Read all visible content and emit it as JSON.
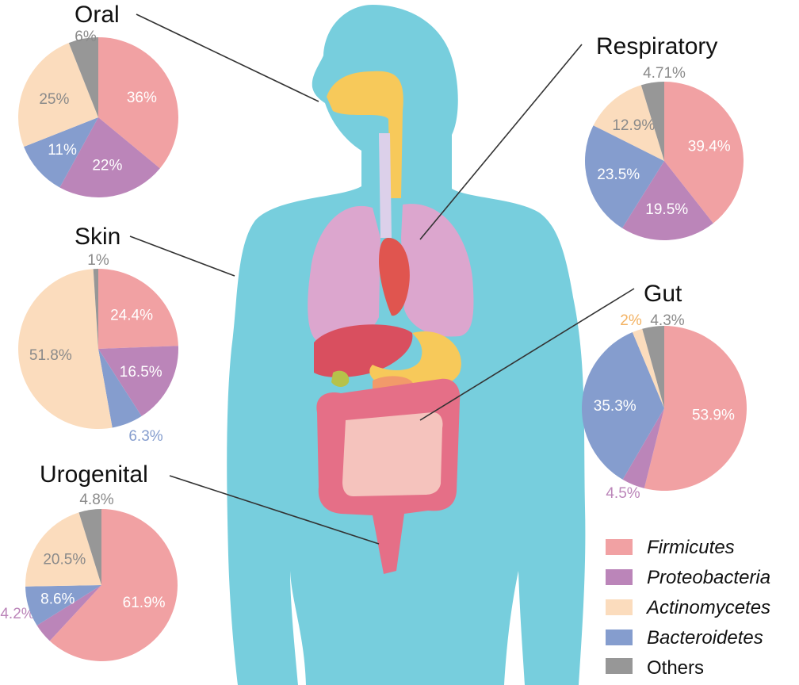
{
  "colors": {
    "Firmicutes": "#f1a1a3",
    "Proteobacteria": "#bb85b9",
    "Actinomycetes": "#fbdcbd",
    "Bacteroidetes": "#859dce",
    "Others": "#979797",
    "body": "#77cedd"
  },
  "legend": [
    {
      "name": "Firmicutes",
      "italic": true
    },
    {
      "name": "Proteobacteria",
      "italic": true
    },
    {
      "name": "Actinomycetes",
      "italic": true
    },
    {
      "name": "Bacteroidetes",
      "italic": true
    },
    {
      "name": "Others",
      "italic": false
    }
  ],
  "chart_data": [
    {
      "type": "pie",
      "title": "Oral",
      "slices": [
        {
          "name": "Firmicutes",
          "value": 36,
          "label": "36%"
        },
        {
          "name": "Proteobacteria",
          "value": 22,
          "label": "22%"
        },
        {
          "name": "Bacteroidetes",
          "value": 11,
          "label": "11%"
        },
        {
          "name": "Actinomycetes",
          "value": 25,
          "label": "25%"
        },
        {
          "name": "Others",
          "value": 6,
          "label": "6%"
        }
      ]
    },
    {
      "type": "pie",
      "title": "Skin",
      "slices": [
        {
          "name": "Firmicutes",
          "value": 24.4,
          "label": "24.4%"
        },
        {
          "name": "Proteobacteria",
          "value": 16.5,
          "label": "16.5%"
        },
        {
          "name": "Bacteroidetes",
          "value": 6.3,
          "label": "6.3%"
        },
        {
          "name": "Actinomycetes",
          "value": 51.8,
          "label": "51.8%"
        },
        {
          "name": "Others",
          "value": 1,
          "label": "1%"
        }
      ]
    },
    {
      "type": "pie",
      "title": "Urogenital",
      "slices": [
        {
          "name": "Firmicutes",
          "value": 61.9,
          "label": "61.9%"
        },
        {
          "name": "Proteobacteria",
          "value": 4.2,
          "label": "4.2%"
        },
        {
          "name": "Bacteroidetes",
          "value": 8.6,
          "label": "8.6%"
        },
        {
          "name": "Actinomycetes",
          "value": 20.5,
          "label": "20.5%"
        },
        {
          "name": "Others",
          "value": 4.8,
          "label": "4.8%"
        }
      ]
    },
    {
      "type": "pie",
      "title": "Respiratory",
      "slices": [
        {
          "name": "Firmicutes",
          "value": 39.4,
          "label": "39.4%"
        },
        {
          "name": "Proteobacteria",
          "value": 19.5,
          "label": "19.5%"
        },
        {
          "name": "Bacteroidetes",
          "value": 23.5,
          "label": "23.5%"
        },
        {
          "name": "Actinomycetes",
          "value": 12.9,
          "label": "12.9%"
        },
        {
          "name": "Others",
          "value": 4.71,
          "label": "4.71%"
        }
      ]
    },
    {
      "type": "pie",
      "title": "Gut",
      "slices": [
        {
          "name": "Firmicutes",
          "value": 53.9,
          "label": "53.9%"
        },
        {
          "name": "Proteobacteria",
          "value": 4.5,
          "label": "4.5%"
        },
        {
          "name": "Bacteroidetes",
          "value": 35.3,
          "label": "35.3%"
        },
        {
          "name": "Actinomycetes",
          "value": 2,
          "label": "2%"
        },
        {
          "name": "Others",
          "value": 4.3,
          "label": "4.3%"
        }
      ]
    }
  ]
}
